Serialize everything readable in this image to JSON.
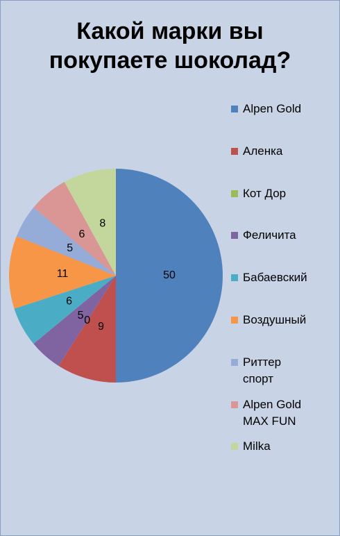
{
  "chart_data": {
    "type": "pie",
    "title": "Какой марки вы покупаете шоколад?",
    "categories": [
      "Alpen Gold",
      "Аленка",
      "Кот Дор",
      "Феличита",
      "Бабаевский",
      "Воздушный",
      "Риттер спорт",
      "Alpen Gold MAX FUN",
      "Milka"
    ],
    "values": [
      50,
      9,
      0,
      5,
      6,
      11,
      5,
      6,
      8
    ],
    "colors": [
      "#4f81bd",
      "#c0504d",
      "#9bbb59",
      "#8064a2",
      "#4bacc6",
      "#f79646",
      "#95abd8",
      "#d99694",
      "#c3d69b"
    ],
    "legend": "right"
  }
}
